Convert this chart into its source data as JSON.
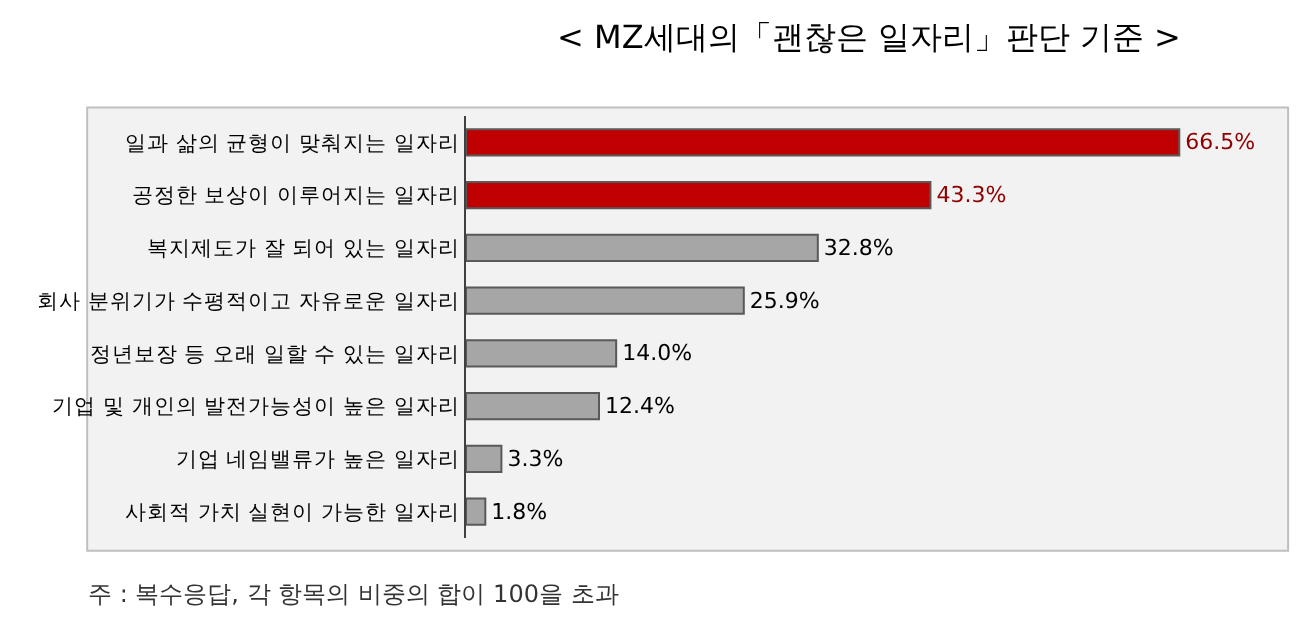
{
  "chart_data": {
    "type": "bar",
    "orientation": "horizontal",
    "title": "< MZ세대의「괜찮은 일자리」판단 기준 >",
    "categories": [
      "일과 삶의 균형이 맞춰지는 일자리",
      "공정한 보상이 이루어지는 일자리",
      "복지제도가 잘 되어 있는 일자리",
      "회사 분위기가 수평적이고 자유로운 일자리",
      "정년보장 등 오래 일할 수 있는 일자리",
      "기업 및 개인의 발전가능성이 높은 일자리",
      "기업 네임밸류가 높은 일자리",
      "사회적 가치 실현이 가능한 일자리"
    ],
    "values": [
      66.5,
      43.3,
      32.8,
      25.9,
      14.0,
      12.4,
      3.3,
      1.8
    ],
    "value_labels": [
      "66.5%",
      "43.3%",
      "32.8%",
      "25.9%",
      "14.0%",
      "12.4%",
      "3.3%",
      "1.8%"
    ],
    "colors": [
      "#c00000",
      "#c00000",
      "#a6a6a6",
      "#a6a6a6",
      "#a6a6a6",
      "#a6a6a6",
      "#a6a6a6",
      "#a6a6a6"
    ],
    "annotations": [
      "주 : 복수응답, 각 항목의 비중의 합이 100을 초과"
    ]
  }
}
